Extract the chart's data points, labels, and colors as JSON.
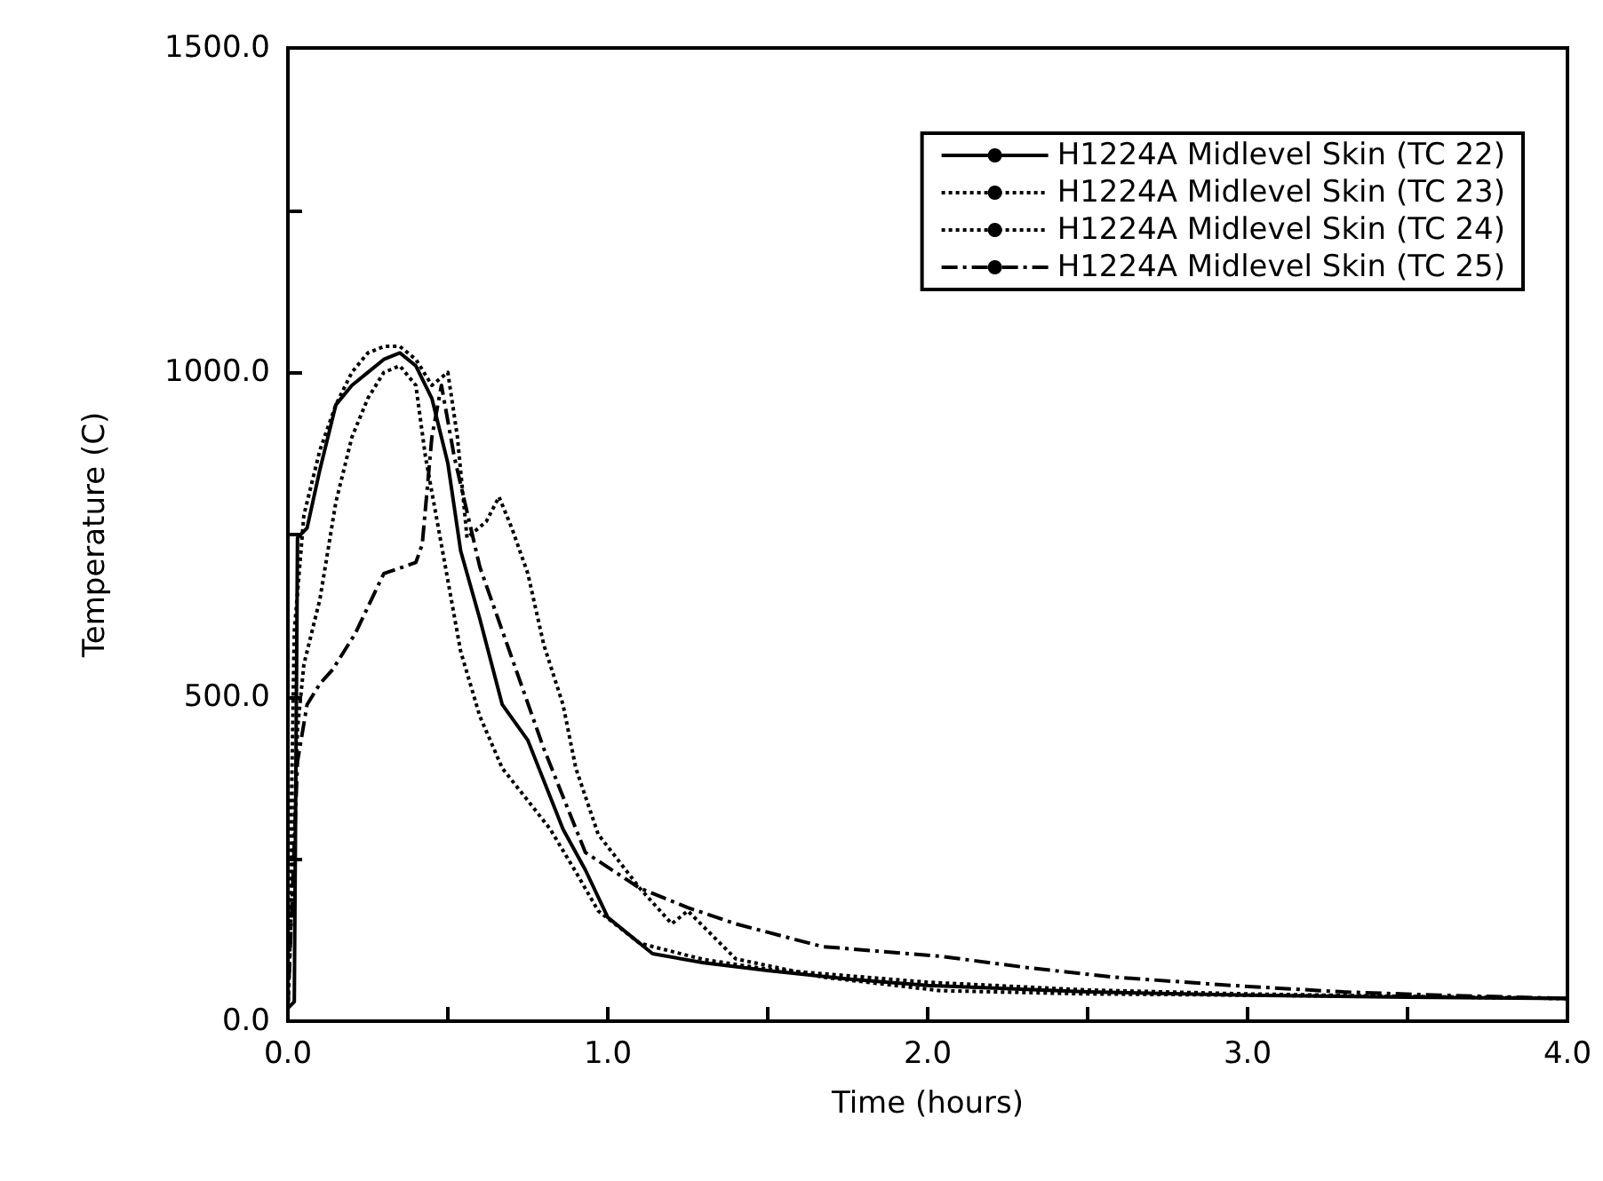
{
  "chart_data": {
    "type": "line",
    "xlabel": "Time (hours)",
    "ylabel": "Temperature (C)",
    "xlim": [
      0,
      4
    ],
    "ylim": [
      0,
      1500
    ],
    "xticks": [
      {
        "value": 0,
        "label": "0.0"
      },
      {
        "value": 0.5,
        "label": null
      },
      {
        "value": 1,
        "label": "1.0"
      },
      {
        "value": 1.5,
        "label": null
      },
      {
        "value": 2,
        "label": "2.0"
      },
      {
        "value": 2.5,
        "label": null
      },
      {
        "value": 3,
        "label": "3.0"
      },
      {
        "value": 3.5,
        "label": null
      },
      {
        "value": 4,
        "label": "4.0"
      }
    ],
    "yticks": [
      {
        "value": 0,
        "label": "0.0"
      },
      {
        "value": 250,
        "label": null
      },
      {
        "value": 500,
        "label": "500.0"
      },
      {
        "value": 750,
        "label": null
      },
      {
        "value": 1000,
        "label": "1000.0"
      },
      {
        "value": 1250,
        "label": null
      },
      {
        "value": 1500,
        "label": "1500.0"
      }
    ],
    "grid": false,
    "legend": "top right",
    "marker": "none",
    "series": [
      {
        "name": "H1224A Midlevel Skin (TC 22)",
        "color": "#000000",
        "line_style": "solid",
        "x": [
          0,
          0.02,
          0.03,
          0.06,
          0.1,
          0.15,
          0.2,
          0.25,
          0.3,
          0.35,
          0.4,
          0.45,
          0.5,
          0.54,
          0.6,
          0.67,
          0.75,
          0.86,
          0.93,
          1.0,
          1.14,
          1.3,
          1.5,
          1.75,
          2.0,
          2.5,
          3.0,
          3.5,
          4.0
        ],
        "values": [
          20,
          30,
          745,
          760,
          850,
          950,
          980,
          1000,
          1020,
          1030,
          1010,
          960,
          860,
          725,
          620,
          488,
          433,
          296,
          233,
          160,
          104,
          90,
          78,
          65,
          55,
          45,
          40,
          37,
          35
        ]
      },
      {
        "name": "H1224A Midlevel Skin (TC 23)",
        "color": "#000000",
        "line_style": "dotted",
        "x": [
          0,
          0.02,
          0.05,
          0.1,
          0.15,
          0.2,
          0.25,
          0.3,
          0.35,
          0.4,
          0.45,
          0.5,
          0.53,
          0.56,
          0.62,
          0.66,
          0.7,
          0.75,
          0.8,
          0.86,
          0.9,
          0.97,
          1.1,
          1.2,
          1.25,
          1.4,
          1.67,
          2.04,
          2.5,
          3.0,
          3.5,
          4.0
        ],
        "values": [
          20,
          600,
          780,
          880,
          950,
          1000,
          1030,
          1040,
          1040,
          1020,
          980,
          1000,
          900,
          745,
          770,
          808,
          760,
          690,
          580,
          488,
          390,
          288,
          205,
          150,
          170,
          96,
          68,
          47,
          42,
          40,
          38,
          35
        ]
      },
      {
        "name": "H1224A Midlevel Skin (TC 24)",
        "color": "#000000",
        "line_style": "dotted",
        "x": [
          0,
          0.03,
          0.05,
          0.1,
          0.15,
          0.2,
          0.25,
          0.3,
          0.35,
          0.4,
          0.43,
          0.49,
          0.54,
          0.6,
          0.67,
          0.75,
          0.82,
          0.9,
          0.97,
          1.1,
          1.3,
          1.5,
          2.0,
          2.5,
          3.0,
          3.5,
          4.0
        ],
        "values": [
          20,
          450,
          550,
          650,
          800,
          900,
          960,
          1000,
          1010,
          980,
          870,
          707,
          570,
          470,
          390,
          340,
          296,
          230,
          170,
          120,
          95,
          80,
          60,
          48,
          42,
          38,
          35
        ]
      },
      {
        "name": "H1224A Midlevel Skin (TC 25)",
        "color": "#000000",
        "line_style": "dashdot",
        "x": [
          0,
          0.03,
          0.06,
          0.1,
          0.14,
          0.21,
          0.3,
          0.36,
          0.4,
          0.42,
          0.45,
          0.48,
          0.52,
          0.6,
          0.7,
          0.8,
          0.93,
          1.1,
          1.25,
          1.4,
          1.67,
          2.04,
          2.32,
          2.58,
          2.95,
          3.3,
          3.6,
          4.0
        ],
        "values": [
          20,
          400,
          488,
          520,
          542,
          597,
          690,
          700,
          707,
          735,
          900,
          980,
          870,
          700,
          560,
          420,
          260,
          205,
          175,
          150,
          115,
          100,
          82,
          68,
          55,
          45,
          40,
          35
        ]
      }
    ]
  }
}
